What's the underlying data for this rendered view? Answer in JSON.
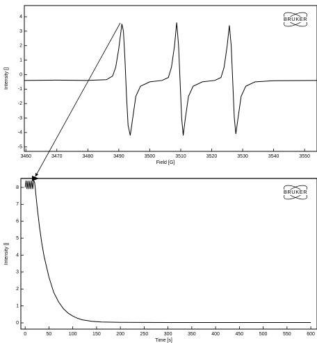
{
  "chart_data": [
    {
      "type": "line",
      "xlabel": "Field [G]",
      "ylabel": "Intensity []",
      "logo": "BRUKER",
      "color": "#000000",
      "x": [
        3459.5,
        3470,
        3480,
        3486,
        3488,
        3489,
        3490,
        3491,
        3491.5,
        3492,
        3492.5,
        3493,
        3493.7,
        3494.5,
        3495.5,
        3497,
        3500,
        3504,
        3506,
        3507,
        3508,
        3508.7,
        3509.3,
        3509.8,
        3510.3,
        3510.8,
        3511.5,
        3512.5,
        3514,
        3517,
        3521,
        3523,
        3524,
        3525,
        3525.7,
        3526.3,
        3526.8,
        3527.3,
        3527.8,
        3528.5,
        3529.5,
        3531,
        3534,
        3540,
        3554
      ],
      "values": [
        -0.4,
        -0.38,
        -0.4,
        -0.35,
        -0.1,
        0.5,
        1.8,
        3.5,
        3.0,
        1.0,
        -1.5,
        -3.5,
        -4.2,
        -3.0,
        -1.5,
        -0.8,
        -0.5,
        -0.4,
        -0.2,
        0.5,
        2.0,
        3.6,
        2.0,
        -0.5,
        -3.0,
        -4.2,
        -3.0,
        -1.5,
        -0.8,
        -0.5,
        -0.4,
        -0.2,
        0.5,
        2.0,
        3.4,
        2.0,
        -0.5,
        -3.0,
        -4.1,
        -3.0,
        -1.5,
        -0.8,
        -0.5,
        -0.42,
        -0.4
      ],
      "xlim": [
        3459.5,
        3554
      ],
      "ylim": [
        -5.3,
        4.77
      ],
      "xticks": [
        3460,
        3470,
        3480,
        3490,
        3500,
        3510,
        3520,
        3530,
        3540,
        3550
      ],
      "yticks": [
        -5,
        -4,
        -3,
        -2,
        -1,
        0,
        1,
        2,
        3,
        4
      ]
    },
    {
      "type": "line",
      "xlabel": "Time [s]",
      "ylabel": "Intensity []",
      "logo": "BRUKER",
      "color": "#000000",
      "x": [
        0,
        2,
        4,
        6,
        8,
        10,
        12,
        14,
        16,
        18,
        20,
        25,
        30,
        35,
        40,
        50,
        60,
        70,
        80,
        90,
        100,
        110,
        120,
        140,
        160,
        200,
        300,
        400,
        500,
        600
      ],
      "values": [
        8.0,
        8.4,
        7.9,
        8.4,
        7.9,
        8.4,
        7.9,
        8.4,
        7.9,
        8.4,
        8.3,
        6.9,
        5.7,
        4.7,
        3.9,
        2.7,
        1.8,
        1.25,
        0.85,
        0.58,
        0.4,
        0.27,
        0.18,
        0.09,
        0.05,
        0.03,
        0.02,
        0.02,
        0.02,
        0.02
      ],
      "xlim": [
        -9,
        613
      ],
      "ylim": [
        -0.37,
        8.53
      ],
      "xticks": [
        0,
        50,
        100,
        150,
        200,
        250,
        300,
        350,
        400,
        450,
        500,
        550,
        600
      ],
      "yticks": [
        0,
        1,
        2,
        3,
        4,
        5,
        6,
        7,
        8
      ]
    }
  ]
}
